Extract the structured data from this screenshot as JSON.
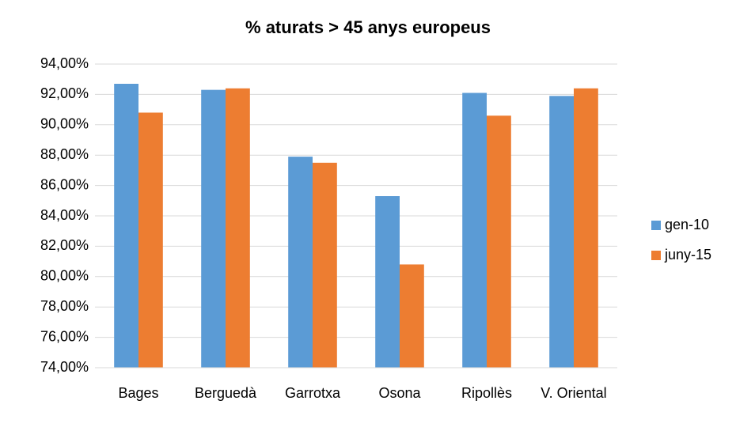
{
  "chart_data": {
    "type": "bar",
    "title": "% aturats  > 45 anys europeus",
    "categories": [
      "Bages",
      "Berguedà",
      "Garrotxa",
      "Osona",
      "Ripollès",
      "V. Oriental"
    ],
    "series": [
      {
        "name": "gen-10",
        "color": "#5b9bd5",
        "values": [
          92.7,
          92.3,
          87.9,
          85.3,
          92.1,
          91.9
        ]
      },
      {
        "name": "juny-15",
        "color": "#ed7d31",
        "values": [
          90.8,
          92.4,
          87.5,
          80.8,
          90.6,
          92.4
        ]
      }
    ],
    "ylim": [
      74,
      94
    ],
    "yticks": [
      {
        "value": 74,
        "label": "74,00%"
      },
      {
        "value": 76,
        "label": "76,00%"
      },
      {
        "value": 78,
        "label": "78,00%"
      },
      {
        "value": 80,
        "label": "80,00%"
      },
      {
        "value": 82,
        "label": "82,00%"
      },
      {
        "value": 84,
        "label": "84,00%"
      },
      {
        "value": 86,
        "label": "86,00%"
      },
      {
        "value": 88,
        "label": "88,00%"
      },
      {
        "value": 90,
        "label": "90,00%"
      },
      {
        "value": 92,
        "label": "92,00%"
      },
      {
        "value": 94,
        "label": "94,00%"
      }
    ],
    "grid": true,
    "legend": "right"
  }
}
